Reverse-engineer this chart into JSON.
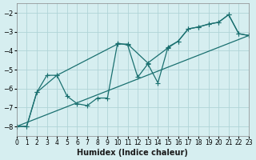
{
  "xlabel": "Humidex (Indice chaleur)",
  "ylabel": "",
  "xlim": [
    0,
    23
  ],
  "ylim": [
    -8.5,
    -1.5
  ],
  "yticks": [
    -8,
    -7,
    -6,
    -5,
    -4,
    -3,
    -2
  ],
  "xticks": [
    0,
    1,
    2,
    3,
    4,
    5,
    6,
    7,
    8,
    9,
    10,
    11,
    12,
    13,
    14,
    15,
    16,
    17,
    18,
    19,
    20,
    21,
    22,
    23
  ],
  "bg_color": "#d6eef0",
  "grid_color": "#b0d4d8",
  "line_color": "#1a7070",
  "line1_x": [
    0,
    1,
    2,
    3,
    4,
    5,
    6,
    7,
    8,
    9,
    10,
    11,
    12,
    13,
    14,
    15,
    16,
    17,
    18,
    19,
    20,
    21,
    22,
    23
  ],
  "line1_y": [
    -8.0,
    -8.0,
    -6.2,
    -5.3,
    -5.3,
    -6.4,
    -6.8,
    -6.9,
    -6.5,
    -6.5,
    -3.6,
    -3.7,
    -5.4,
    -4.7,
    -5.7,
    -3.8,
    -3.5,
    -2.85,
    -2.75,
    -2.6,
    -2.5,
    -2.1,
    -3.1,
    -3.2
  ],
  "line2_x": [
    0,
    1,
    2,
    4,
    10,
    11,
    13,
    15,
    16,
    17,
    18,
    19,
    20,
    21,
    22,
    23
  ],
  "line2_y": [
    -8.0,
    -8.0,
    -6.2,
    -5.3,
    -3.65,
    -3.65,
    -4.65,
    -3.85,
    -3.5,
    -2.85,
    -2.75,
    -2.6,
    -2.5,
    -2.1,
    -3.1,
    -3.2
  ],
  "line3_x": [
    0,
    23
  ],
  "line3_y": [
    -8.0,
    -3.2
  ]
}
